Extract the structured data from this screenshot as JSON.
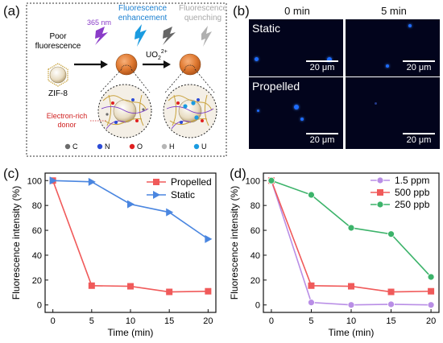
{
  "panel_a": {
    "label": "(a)",
    "poor_fluorescence": "Poor\nfluorescence",
    "zif8": "ZIF-8",
    "nm": "365 nm",
    "fluor_enh": "Fluorescence\nenhancement",
    "fluor_quench": "Fluorescence\nquenching",
    "uo2": "UO",
    "uo2_sub": "2",
    "uo2_sup": "2+",
    "donor": "Electron-rich\ndonor",
    "legend": [
      {
        "sym": "C",
        "color": "#6b6b6b"
      },
      {
        "sym": "N",
        "color": "#2c4bd6"
      },
      {
        "sym": "O",
        "color": "#e02020"
      },
      {
        "sym": "H",
        "color": "#b5b5b5"
      },
      {
        "sym": "U",
        "color": "#1a9be0"
      }
    ]
  },
  "panel_b": {
    "label": "(b)",
    "col0": "0 min",
    "col1": "5 min",
    "row0": "Static",
    "row1": "Propelled",
    "scale": "20 μm"
  },
  "chart_c": {
    "label": "(c)",
    "chart_data": {
      "type": "line",
      "xlabel": "Time (min)",
      "ylabel": "Fluorescence intensity (%)",
      "xlim": [
        -1,
        21
      ],
      "ylim": [
        -6,
        106
      ],
      "xticks": [
        0,
        5,
        10,
        15,
        20
      ],
      "yticks": [
        0,
        20,
        40,
        60,
        80,
        100
      ],
      "legend_position": "top-right",
      "series": [
        {
          "name": "Propelled",
          "color": "#f05a5a",
          "marker": "square",
          "x": [
            0,
            5,
            10,
            15,
            20
          ],
          "y": [
            100,
            15.5,
            15,
            10.5,
            11
          ]
        },
        {
          "name": "Static",
          "color": "#4a86e0",
          "marker": "triangle-right",
          "x": [
            0,
            5,
            10,
            15,
            20
          ],
          "y": [
            100,
            99,
            81,
            74.5,
            53
          ]
        }
      ]
    }
  },
  "chart_d": {
    "label": "(d)",
    "chart_data": {
      "type": "line",
      "xlabel": "Time (min)",
      "ylabel": "Fluorescence intensity (%)",
      "xlim": [
        -1,
        21
      ],
      "ylim": [
        -6,
        106
      ],
      "xticks": [
        0,
        5,
        10,
        15,
        20
      ],
      "yticks": [
        0,
        20,
        40,
        60,
        80,
        100
      ],
      "legend_position": "top-right",
      "series": [
        {
          "name": "1.5 ppm",
          "color": "#b98ee6",
          "marker": "circle",
          "x": [
            0,
            5,
            10,
            15,
            20
          ],
          "y": [
            100,
            2,
            0,
            0.5,
            0
          ]
        },
        {
          "name": "500 ppb",
          "color": "#f05a5a",
          "marker": "square",
          "x": [
            0,
            5,
            10,
            15,
            20
          ],
          "y": [
            100,
            15.5,
            15,
            10.5,
            11
          ]
        },
        {
          "name": "250 ppb",
          "color": "#3cb36a",
          "marker": "circle",
          "x": [
            0,
            5,
            10,
            15,
            20
          ],
          "y": [
            100,
            88.5,
            62,
            57,
            22.5
          ]
        }
      ]
    }
  }
}
